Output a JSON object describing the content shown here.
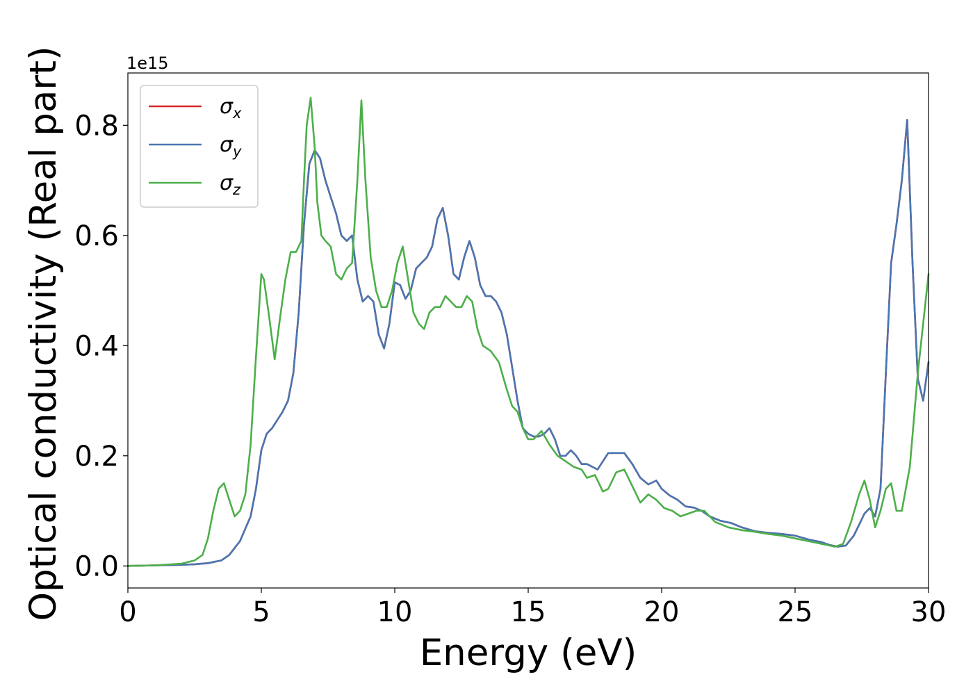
{
  "chart_data": {
    "type": "line",
    "title": "",
    "xlabel": "Energy (eV)",
    "ylabel": "Optical conductivity (Real part)",
    "y_offset_text": "1e15",
    "xlim": [
      0,
      30
    ],
    "ylim": [
      -0.04,
      0.895
    ],
    "xticks": [
      0,
      5,
      10,
      15,
      20,
      25,
      30
    ],
    "yticks": [
      0.0,
      0.2,
      0.4,
      0.6,
      0.8
    ],
    "xtick_labels": [
      "0",
      "5",
      "10",
      "15",
      "20",
      "25",
      "30"
    ],
    "ytick_labels": [
      "0.0",
      "0.2",
      "0.4",
      "0.6",
      "0.8"
    ],
    "grid": false,
    "legend_position": "top-left",
    "series": [
      {
        "name": "σx",
        "symbol": "σ",
        "subscript": "x",
        "color": "#d62728",
        "x": [
          0,
          1,
          2,
          2.5,
          3,
          3.5,
          3.8,
          4.2,
          4.6,
          4.8,
          5.0,
          5.2,
          5.4,
          5.6,
          5.8,
          6.0,
          6.2,
          6.4,
          6.6,
          6.8,
          7.0,
          7.2,
          7.4,
          7.6,
          7.8,
          8.0,
          8.2,
          8.4,
          8.6,
          8.8,
          9.0,
          9.2,
          9.4,
          9.6,
          9.8,
          10.0,
          10.2,
          10.4,
          10.6,
          10.8,
          11.0,
          11.2,
          11.4,
          11.6,
          11.8,
          12.0,
          12.2,
          12.4,
          12.6,
          12.8,
          13.0,
          13.2,
          13.4,
          13.6,
          13.8,
          14.0,
          14.2,
          14.4,
          14.6,
          14.8,
          15.0,
          15.2,
          15.4,
          15.6,
          15.8,
          16.0,
          16.2,
          16.4,
          16.6,
          16.8,
          17.0,
          17.2,
          17.4,
          17.6,
          17.8,
          18.0,
          18.3,
          18.6,
          18.9,
          19.2,
          19.5,
          19.8,
          20.0,
          20.3,
          20.6,
          20.9,
          21.2,
          21.5,
          21.8,
          22.2,
          22.6,
          23.0,
          23.5,
          24.0,
          24.5,
          25.0,
          25.5,
          26.0,
          26.3,
          26.6,
          26.9,
          27.2,
          27.4,
          27.6,
          27.8,
          28.0,
          28.2,
          28.4,
          28.6,
          28.8,
          29.0,
          29.2,
          29.4,
          29.6,
          29.8,
          30.0
        ],
        "values": [
          0.0,
          0.001,
          0.002,
          0.003,
          0.005,
          0.01,
          0.02,
          0.045,
          0.09,
          0.14,
          0.21,
          0.24,
          0.25,
          0.265,
          0.28,
          0.3,
          0.35,
          0.46,
          0.62,
          0.73,
          0.755,
          0.74,
          0.7,
          0.67,
          0.64,
          0.6,
          0.59,
          0.6,
          0.52,
          0.48,
          0.49,
          0.48,
          0.42,
          0.395,
          0.44,
          0.515,
          0.51,
          0.485,
          0.5,
          0.54,
          0.55,
          0.56,
          0.58,
          0.63,
          0.65,
          0.6,
          0.53,
          0.52,
          0.56,
          0.59,
          0.56,
          0.51,
          0.49,
          0.49,
          0.48,
          0.46,
          0.42,
          0.36,
          0.3,
          0.25,
          0.24,
          0.235,
          0.235,
          0.24,
          0.25,
          0.23,
          0.2,
          0.2,
          0.21,
          0.2,
          0.185,
          0.185,
          0.18,
          0.175,
          0.19,
          0.205,
          0.205,
          0.205,
          0.185,
          0.16,
          0.148,
          0.155,
          0.14,
          0.128,
          0.12,
          0.108,
          0.106,
          0.1,
          0.09,
          0.082,
          0.078,
          0.07,
          0.063,
          0.06,
          0.058,
          0.055,
          0.048,
          0.043,
          0.038,
          0.035,
          0.037,
          0.055,
          0.075,
          0.095,
          0.105,
          0.09,
          0.14,
          0.35,
          0.55,
          0.62,
          0.7,
          0.81,
          0.55,
          0.34,
          0.3,
          0.37
        ]
      },
      {
        "name": "σy",
        "symbol": "σ",
        "subscript": "y",
        "color": "#4a76b0",
        "x": [
          0,
          1,
          2,
          2.5,
          3,
          3.5,
          3.8,
          4.2,
          4.6,
          4.8,
          5.0,
          5.2,
          5.4,
          5.6,
          5.8,
          6.0,
          6.2,
          6.4,
          6.6,
          6.8,
          7.0,
          7.2,
          7.4,
          7.6,
          7.8,
          8.0,
          8.2,
          8.4,
          8.6,
          8.8,
          9.0,
          9.2,
          9.4,
          9.6,
          9.8,
          10.0,
          10.2,
          10.4,
          10.6,
          10.8,
          11.0,
          11.2,
          11.4,
          11.6,
          11.8,
          12.0,
          12.2,
          12.4,
          12.6,
          12.8,
          13.0,
          13.2,
          13.4,
          13.6,
          13.8,
          14.0,
          14.2,
          14.4,
          14.6,
          14.8,
          15.0,
          15.2,
          15.4,
          15.6,
          15.8,
          16.0,
          16.2,
          16.4,
          16.6,
          16.8,
          17.0,
          17.2,
          17.4,
          17.6,
          17.8,
          18.0,
          18.3,
          18.6,
          18.9,
          19.2,
          19.5,
          19.8,
          20.0,
          20.3,
          20.6,
          20.9,
          21.2,
          21.5,
          21.8,
          22.2,
          22.6,
          23.0,
          23.5,
          24.0,
          24.5,
          25.0,
          25.5,
          26.0,
          26.3,
          26.6,
          26.9,
          27.2,
          27.4,
          27.6,
          27.8,
          28.0,
          28.2,
          28.4,
          28.6,
          28.8,
          29.0,
          29.2,
          29.4,
          29.6,
          29.8,
          30.0
        ],
        "values": [
          0.0,
          0.001,
          0.002,
          0.003,
          0.005,
          0.01,
          0.02,
          0.045,
          0.09,
          0.14,
          0.21,
          0.24,
          0.25,
          0.265,
          0.28,
          0.3,
          0.35,
          0.46,
          0.62,
          0.73,
          0.755,
          0.74,
          0.7,
          0.67,
          0.64,
          0.6,
          0.59,
          0.6,
          0.52,
          0.48,
          0.49,
          0.48,
          0.42,
          0.395,
          0.44,
          0.515,
          0.51,
          0.485,
          0.5,
          0.54,
          0.55,
          0.56,
          0.58,
          0.63,
          0.65,
          0.6,
          0.53,
          0.52,
          0.56,
          0.59,
          0.56,
          0.51,
          0.49,
          0.49,
          0.48,
          0.46,
          0.42,
          0.36,
          0.3,
          0.25,
          0.24,
          0.235,
          0.235,
          0.24,
          0.25,
          0.23,
          0.2,
          0.2,
          0.21,
          0.2,
          0.185,
          0.185,
          0.18,
          0.175,
          0.19,
          0.205,
          0.205,
          0.205,
          0.185,
          0.16,
          0.148,
          0.155,
          0.14,
          0.128,
          0.12,
          0.108,
          0.106,
          0.1,
          0.09,
          0.082,
          0.078,
          0.07,
          0.063,
          0.06,
          0.058,
          0.055,
          0.048,
          0.043,
          0.038,
          0.035,
          0.037,
          0.055,
          0.075,
          0.095,
          0.105,
          0.09,
          0.14,
          0.35,
          0.55,
          0.62,
          0.7,
          0.81,
          0.55,
          0.34,
          0.3,
          0.37
        ]
      },
      {
        "name": "σz",
        "symbol": "σ",
        "subscript": "z",
        "color": "#4daf4a",
        "x": [
          0,
          1,
          2,
          2.5,
          2.8,
          3.0,
          3.2,
          3.4,
          3.6,
          3.8,
          4.0,
          4.2,
          4.4,
          4.6,
          4.8,
          5.0,
          5.1,
          5.3,
          5.5,
          5.7,
          5.9,
          6.1,
          6.3,
          6.5,
          6.6,
          6.7,
          6.85,
          7.0,
          7.1,
          7.25,
          7.4,
          7.6,
          7.8,
          8.0,
          8.2,
          8.4,
          8.6,
          8.75,
          8.9,
          9.1,
          9.3,
          9.5,
          9.7,
          9.9,
          10.1,
          10.3,
          10.5,
          10.7,
          10.9,
          11.1,
          11.3,
          11.5,
          11.7,
          11.9,
          12.1,
          12.3,
          12.5,
          12.7,
          12.9,
          13.1,
          13.3,
          13.6,
          13.9,
          14.2,
          14.4,
          14.6,
          14.8,
          15.0,
          15.2,
          15.5,
          15.8,
          16.1,
          16.4,
          16.7,
          17.0,
          17.2,
          17.5,
          17.8,
          18.0,
          18.3,
          18.6,
          18.9,
          19.2,
          19.5,
          19.8,
          20.1,
          20.4,
          20.7,
          21.0,
          21.3,
          21.6,
          22.0,
          22.5,
          23.0,
          23.5,
          24.0,
          24.5,
          25.0,
          25.5,
          26.0,
          26.5,
          26.8,
          27.1,
          27.4,
          27.6,
          27.8,
          28.0,
          28.2,
          28.4,
          28.6,
          28.8,
          29.0,
          29.3,
          29.6,
          30.0
        ],
        "values": [
          0.0,
          0.001,
          0.004,
          0.01,
          0.02,
          0.05,
          0.1,
          0.14,
          0.15,
          0.12,
          0.09,
          0.1,
          0.13,
          0.22,
          0.38,
          0.53,
          0.52,
          0.45,
          0.375,
          0.45,
          0.52,
          0.57,
          0.57,
          0.59,
          0.7,
          0.8,
          0.85,
          0.76,
          0.66,
          0.6,
          0.59,
          0.58,
          0.53,
          0.52,
          0.54,
          0.55,
          0.7,
          0.845,
          0.7,
          0.56,
          0.5,
          0.47,
          0.47,
          0.5,
          0.55,
          0.58,
          0.52,
          0.46,
          0.44,
          0.43,
          0.46,
          0.47,
          0.47,
          0.49,
          0.48,
          0.47,
          0.47,
          0.49,
          0.48,
          0.43,
          0.4,
          0.39,
          0.37,
          0.32,
          0.29,
          0.28,
          0.25,
          0.23,
          0.23,
          0.245,
          0.22,
          0.2,
          0.19,
          0.18,
          0.175,
          0.16,
          0.165,
          0.135,
          0.14,
          0.17,
          0.175,
          0.145,
          0.115,
          0.13,
          0.12,
          0.105,
          0.1,
          0.09,
          0.095,
          0.1,
          0.1,
          0.08,
          0.07,
          0.065,
          0.062,
          0.058,
          0.055,
          0.05,
          0.045,
          0.04,
          0.035,
          0.04,
          0.08,
          0.13,
          0.155,
          0.12,
          0.07,
          0.1,
          0.14,
          0.15,
          0.1,
          0.1,
          0.18,
          0.35,
          0.53
        ]
      }
    ]
  }
}
